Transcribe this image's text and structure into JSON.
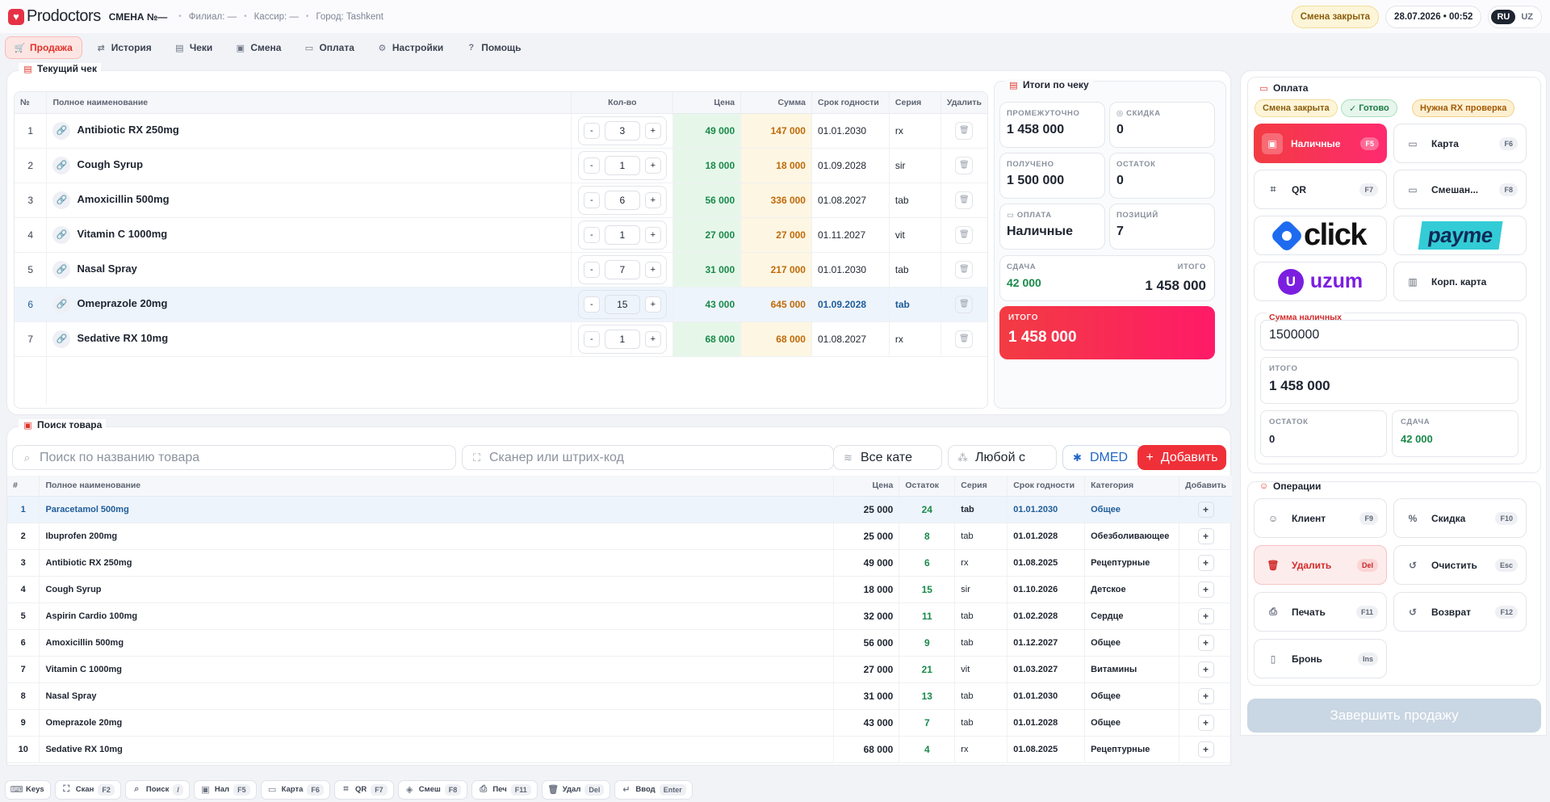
{
  "app": {
    "name": "Prodoctors",
    "shift": "СМЕНА №—",
    "branch": "Филиал: —",
    "cashier": "Кассир: —",
    "city": "Город: Tashkent",
    "shift_status": "Смена закрыта",
    "datetime": "28.07.2026 • 00:52",
    "lang": [
      "RU",
      "UZ"
    ]
  },
  "nav": [
    "Продажа",
    "История",
    "Чеки",
    "Смена",
    "Оплата",
    "Настройки",
    "Помощь"
  ],
  "cart": {
    "title": "Текущий чек",
    "headers": [
      "№",
      "Полное наименование",
      "Кол-во",
      "Цена",
      "Сумма",
      "Срок годности",
      "Серия",
      "Удалить"
    ],
    "rows": [
      {
        "n": "1",
        "name": "Antibiotic RX 250mg",
        "qty": "3",
        "price": "49 000",
        "sum": "147 000",
        "exp": "01.01.2030",
        "series": "rx"
      },
      {
        "n": "2",
        "name": "Cough Syrup",
        "qty": "1",
        "price": "18 000",
        "sum": "18 000",
        "exp": "01.09.2028",
        "series": "sir"
      },
      {
        "n": "3",
        "name": "Amoxicillin 500mg",
        "qty": "6",
        "price": "56 000",
        "sum": "336 000",
        "exp": "01.08.2027",
        "series": "tab"
      },
      {
        "n": "4",
        "name": "Vitamin C 1000mg",
        "qty": "1",
        "price": "27 000",
        "sum": "27 000",
        "exp": "01.11.2027",
        "series": "vit"
      },
      {
        "n": "5",
        "name": "Nasal Spray",
        "qty": "7",
        "price": "31 000",
        "sum": "217 000",
        "exp": "01.01.2030",
        "series": "tab"
      },
      {
        "n": "6",
        "name": "Omeprazole 20mg",
        "qty": "15",
        "price": "43 000",
        "sum": "645 000",
        "exp": "01.09.2028",
        "series": "tab"
      },
      {
        "n": "7",
        "name": "Sedative RX 10mg",
        "qty": "1",
        "price": "68 000",
        "sum": "68 000",
        "exp": "01.08.2027",
        "series": "rx"
      }
    ]
  },
  "totals": {
    "title": "Итоги по чеку",
    "subtotal_lbl": "ПРОМЕЖУТОЧНО",
    "subtotal": "1 458 000",
    "discount_lbl": "СКИДКА",
    "discount": "0",
    "received_lbl": "ПОЛУЧЕНО",
    "received": "1 500 000",
    "remainder_lbl": "ОСТАТОК",
    "remainder": "0",
    "payment_lbl": "ОПЛАТА",
    "payment": "Наличные",
    "positions_lbl": "ПОЗИЦИЙ",
    "positions": "7",
    "change_lbl": "СДАЧА",
    "change": "42 000",
    "total_lbl": "ИТОГО",
    "total": "1 458 000",
    "grand_lbl": "ИТОГО",
    "grand": "1 458 000"
  },
  "search": {
    "title": "Поиск товара",
    "name_ph": "Поиск по названию товара",
    "scan_ph": "Сканер или штрих-код",
    "category": "Все кате",
    "any": "Любой с",
    "dmed": "DMED",
    "add": "Добавить",
    "headers": [
      "#",
      "Полное наименование",
      "Цена",
      "Остаток",
      "Серия",
      "Срок годности",
      "Категория",
      "Добавить"
    ],
    "rows": [
      {
        "n": "1",
        "name": "Paracetamol 500mg",
        "price": "25 000",
        "stock": "24",
        "series": "tab",
        "exp": "01.01.2030",
        "cat": "Общее"
      },
      {
        "n": "2",
        "name": "Ibuprofen 200mg",
        "price": "25 000",
        "stock": "8",
        "series": "tab",
        "exp": "01.01.2028",
        "cat": "Обезболивающее"
      },
      {
        "n": "3",
        "name": "Antibiotic RX 250mg",
        "price": "49 000",
        "stock": "6",
        "series": "rx",
        "exp": "01.08.2025",
        "cat": "Рецептурные"
      },
      {
        "n": "4",
        "name": "Cough Syrup",
        "price": "18 000",
        "stock": "15",
        "series": "sir",
        "exp": "01.10.2026",
        "cat": "Детское"
      },
      {
        "n": "5",
        "name": "Aspirin Cardio 100mg",
        "price": "32 000",
        "stock": "11",
        "series": "tab",
        "exp": "01.02.2028",
        "cat": "Сердце"
      },
      {
        "n": "6",
        "name": "Amoxicillin 500mg",
        "price": "56 000",
        "stock": "9",
        "series": "tab",
        "exp": "01.12.2027",
        "cat": "Общее"
      },
      {
        "n": "7",
        "name": "Vitamin C 1000mg",
        "price": "27 000",
        "stock": "21",
        "series": "vit",
        "exp": "01.03.2027",
        "cat": "Витамины"
      },
      {
        "n": "8",
        "name": "Nasal Spray",
        "price": "31 000",
        "stock": "13",
        "series": "tab",
        "exp": "01.01.2030",
        "cat": "Общее"
      },
      {
        "n": "9",
        "name": "Omeprazole 20mg",
        "price": "43 000",
        "stock": "7",
        "series": "tab",
        "exp": "01.01.2028",
        "cat": "Общее"
      },
      {
        "n": "10",
        "name": "Sedative RX 10mg",
        "price": "68 000",
        "stock": "4",
        "series": "rx",
        "exp": "01.08.2025",
        "cat": "Рецептурные"
      }
    ]
  },
  "payment": {
    "title": "Оплата",
    "badges": [
      "Смена закрыта",
      "Готово",
      "Нужна RX проверка"
    ],
    "methods": {
      "cash": "Наличные",
      "cash_key": "F5",
      "card": "Карта",
      "card_key": "F6",
      "qr": "QR",
      "qr_key": "F7",
      "mixed": "Смешан...",
      "mixed_key": "F8",
      "click": "click",
      "payme": "payme",
      "uzum": "uzum",
      "corp": "Корп. карта"
    },
    "cash_lbl": "Сумма наличных",
    "cash_value": "1500000",
    "total_lbl": "ИТОГО",
    "total": "1 458 000",
    "rem_lbl": "ОСТАТОК",
    "rem": "0",
    "change_lbl": "СДАЧА",
    "change": "42 000"
  },
  "ops": {
    "title": "Операции",
    "client": "Клиент",
    "client_key": "F9",
    "discount": "Скидка",
    "discount_key": "F10",
    "delete": "Удалить",
    "delete_key": "Del",
    "clear": "Очистить",
    "clear_key": "Esc",
    "print": "Печать",
    "print_key": "F11",
    "return": "Возврат",
    "return_key": "F12",
    "reserve": "Бронь",
    "reserve_key": "Ins",
    "finish": "Завершить продажу"
  },
  "hotkeys": [
    {
      "l": "Keys",
      "k": ""
    },
    {
      "l": "Скан",
      "k": "F2"
    },
    {
      "l": "Поиск",
      "k": "/"
    },
    {
      "l": "Нал",
      "k": "F5"
    },
    {
      "l": "Карта",
      "k": "F6"
    },
    {
      "l": "QR",
      "k": "F7"
    },
    {
      "l": "Смеш",
      "k": "F8"
    },
    {
      "l": "Печ",
      "k": "F11"
    },
    {
      "l": "Удал",
      "k": "Del"
    },
    {
      "l": "Ввод",
      "k": "Enter"
    }
  ]
}
